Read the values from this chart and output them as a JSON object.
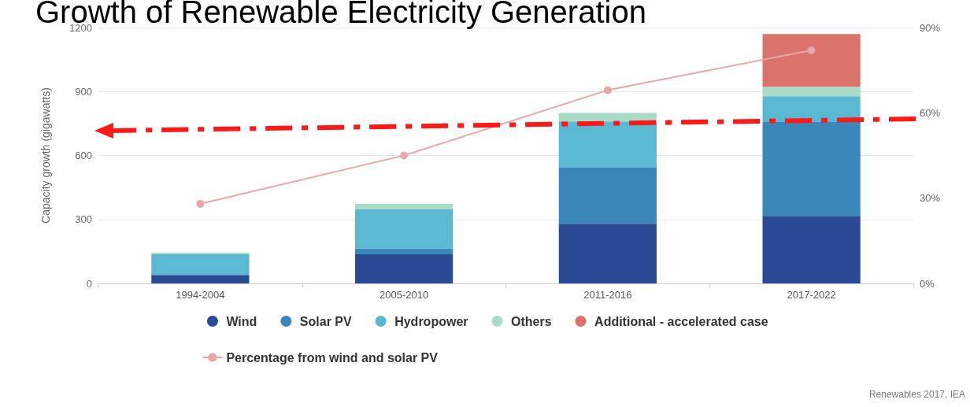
{
  "chart_data": {
    "type": "bar",
    "title": "Growth of Renewable Electricity Generation",
    "ylabel": "Capacity growth (gigawatts)",
    "categories": [
      "1994-2004",
      "2005-2010",
      "2011-2016",
      "2017-2022"
    ],
    "stacked": true,
    "series": [
      {
        "name": "Wind",
        "color": "#2a4a93",
        "values": [
          40,
          137,
          280,
          317
        ]
      },
      {
        "name": "Solar PV",
        "color": "#3a87b9",
        "values": [
          0,
          26,
          263,
          440
        ]
      },
      {
        "name": "Hydropower",
        "color": "#5bb8d3",
        "values": [
          97,
          184,
          217,
          121
        ]
      },
      {
        "name": "Others",
        "color": "#a8dcc8",
        "values": [
          7,
          26,
          40,
          44
        ]
      },
      {
        "name": "Additional - accelerated case",
        "color": "#d9736b",
        "values": [
          null,
          null,
          null,
          248
        ]
      },
      {
        "name": "Percentage from wind and solar PV",
        "type": "line",
        "axis": "y2",
        "color": "#e8a8a8",
        "marker": "circle",
        "values": [
          28,
          45,
          68,
          82
        ]
      }
    ],
    "ylim": [
      0,
      1200
    ],
    "yticks": [
      0,
      300,
      600,
      900,
      1200
    ],
    "y2lim": [
      0,
      90
    ],
    "y2ticks": [
      {
        "value": 0,
        "label": "0%"
      },
      {
        "value": 30,
        "label": "30%"
      },
      {
        "value": 60,
        "label": "60%"
      },
      {
        "value": 90,
        "label": "90%"
      }
    ],
    "grid": "y",
    "legend": "bottom",
    "annotations": [
      "Renewables 2017, IEA"
    ]
  }
}
